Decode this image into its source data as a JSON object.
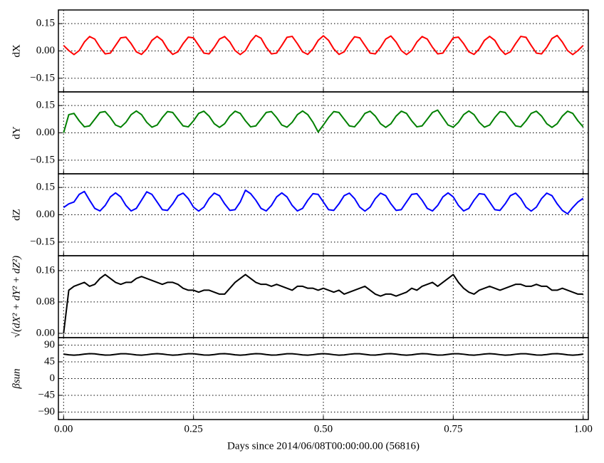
{
  "chart_data": [
    {
      "type": "line",
      "ylabel": "dX",
      "color": "#ff0000",
      "grid": true,
      "xlim": [
        -0.01,
        1.01
      ],
      "xticks": [
        0,
        0.25,
        0.5,
        0.75,
        1
      ],
      "ylim": [
        -0.225,
        0.225
      ],
      "yticks": [
        {
          "value": -0.15,
          "label": "−0.15"
        },
        {
          "value": 0,
          "label": "0.00"
        },
        0.15
      ],
      "x": [
        0,
        0.01,
        0.02,
        0.03,
        0.04,
        0.05,
        0.06,
        0.07,
        0.08,
        0.09,
        0.1,
        0.11,
        0.12,
        0.13,
        0.14,
        0.15,
        0.16,
        0.17,
        0.18,
        0.19,
        0.2,
        0.21,
        0.22,
        0.23,
        0.24,
        0.25,
        0.26,
        0.27,
        0.28,
        0.29,
        0.3,
        0.31,
        0.32,
        0.33,
        0.34,
        0.35,
        0.36,
        0.37,
        0.38,
        0.39,
        0.4,
        0.41,
        0.42,
        0.43,
        0.44,
        0.45,
        0.46,
        0.47,
        0.48,
        0.49,
        0.5,
        0.51,
        0.52,
        0.53,
        0.54,
        0.55,
        0.56,
        0.57,
        0.58,
        0.59,
        0.6,
        0.61,
        0.62,
        0.63,
        0.64,
        0.65,
        0.66,
        0.67,
        0.68,
        0.69,
        0.7,
        0.71,
        0.72,
        0.73,
        0.74,
        0.75,
        0.76,
        0.77,
        0.78,
        0.79,
        0.8,
        0.81,
        0.82,
        0.83,
        0.84,
        0.85,
        0.86,
        0.87,
        0.88,
        0.89,
        0.9,
        0.91,
        0.92,
        0.93,
        0.94,
        0.95,
        0.96,
        0.97,
        0.98,
        0.99,
        1
      ],
      "values": [
        0.03,
        0.002,
        -0.02,
        0.002,
        0.049,
        0.079,
        0.065,
        0.02,
        -0.016,
        -0.012,
        0.03,
        0.072,
        0.076,
        0.04,
        -0.005,
        -0.019,
        0.011,
        0.058,
        0.08,
        0.058,
        0.011,
        -0.019,
        -0.005,
        0.04,
        0.076,
        0.072,
        0.03,
        -0.012,
        -0.016,
        0.02,
        0.065,
        0.079,
        0.049,
        0.002,
        -0.02,
        0.002,
        0.052,
        0.085,
        0.07,
        0.02,
        -0.016,
        -0.012,
        0.03,
        0.075,
        0.08,
        0.04,
        -0.005,
        -0.019,
        0.011,
        0.058,
        0.083,
        0.058,
        0.011,
        -0.019,
        -0.005,
        0.04,
        0.078,
        0.072,
        0.03,
        -0.012,
        -0.016,
        0.02,
        0.065,
        0.082,
        0.049,
        0.002,
        -0.02,
        0.002,
        0.049,
        0.079,
        0.065,
        0.02,
        -0.016,
        -0.012,
        0.03,
        0.072,
        0.076,
        0.04,
        -0.005,
        -0.019,
        0.011,
        0.058,
        0.08,
        0.058,
        0.011,
        -0.019,
        -0.005,
        0.04,
        0.08,
        0.075,
        0.03,
        -0.012,
        -0.016,
        0.02,
        0.068,
        0.085,
        0.049,
        0.002,
        -0.02,
        0.002,
        0.03
      ]
    },
    {
      "type": "line",
      "ylabel": "dY",
      "color": "#008000",
      "grid": true,
      "xlim": [
        -0.01,
        1.01
      ],
      "xticks": [
        0,
        0.25,
        0.5,
        0.75,
        1
      ],
      "ylim": [
        -0.225,
        0.225
      ],
      "yticks": [
        {
          "value": -0.15,
          "label": "−0.15"
        },
        {
          "value": 0,
          "label": "0.00"
        },
        0.15
      ],
      "x": [
        0,
        0.01,
        0.02,
        0.03,
        0.04,
        0.05,
        0.06,
        0.07,
        0.08,
        0.09,
        0.1,
        0.11,
        0.12,
        0.13,
        0.14,
        0.15,
        0.16,
        0.17,
        0.18,
        0.19,
        0.2,
        0.21,
        0.22,
        0.23,
        0.24,
        0.25,
        0.26,
        0.27,
        0.28,
        0.29,
        0.3,
        0.31,
        0.32,
        0.33,
        0.34,
        0.35,
        0.36,
        0.37,
        0.38,
        0.39,
        0.4,
        0.41,
        0.42,
        0.43,
        0.44,
        0.45,
        0.46,
        0.47,
        0.48,
        0.49,
        0.5,
        0.51,
        0.52,
        0.53,
        0.54,
        0.55,
        0.56,
        0.57,
        0.58,
        0.59,
        0.6,
        0.61,
        0.62,
        0.63,
        0.64,
        0.65,
        0.66,
        0.67,
        0.68,
        0.69,
        0.7,
        0.71,
        0.72,
        0.73,
        0.74,
        0.75,
        0.76,
        0.77,
        0.78,
        0.79,
        0.8,
        0.81,
        0.82,
        0.83,
        0.84,
        0.85,
        0.86,
        0.87,
        0.88,
        0.89,
        0.9,
        0.91,
        0.92,
        0.93,
        0.94,
        0.95,
        0.96,
        0.97,
        0.98,
        0.99,
        1
      ],
      "values": [
        0.0,
        0.1,
        0.107,
        0.066,
        0.033,
        0.038,
        0.075,
        0.112,
        0.117,
        0.084,
        0.043,
        0.031,
        0.058,
        0.1,
        0.12,
        0.1,
        0.058,
        0.031,
        0.043,
        0.084,
        0.117,
        0.112,
        0.075,
        0.038,
        0.033,
        0.066,
        0.107,
        0.119,
        0.092,
        0.05,
        0.03,
        0.05,
        0.092,
        0.119,
        0.107,
        0.066,
        0.033,
        0.038,
        0.075,
        0.112,
        0.117,
        0.084,
        0.043,
        0.031,
        0.058,
        0.1,
        0.12,
        0.1,
        0.058,
        0.005,
        0.043,
        0.084,
        0.117,
        0.112,
        0.075,
        0.038,
        0.033,
        0.066,
        0.107,
        0.119,
        0.092,
        0.05,
        0.03,
        0.05,
        0.092,
        0.119,
        0.107,
        0.066,
        0.033,
        0.038,
        0.075,
        0.112,
        0.125,
        0.084,
        0.043,
        0.031,
        0.058,
        0.1,
        0.12,
        0.1,
        0.058,
        0.031,
        0.043,
        0.084,
        0.117,
        0.112,
        0.075,
        0.038,
        0.033,
        0.066,
        0.107,
        0.119,
        0.092,
        0.05,
        0.03,
        0.05,
        0.092,
        0.119,
        0.107,
        0.066,
        0.033
      ]
    },
    {
      "type": "line",
      "ylabel": "dZ",
      "color": "#0000ff",
      "grid": true,
      "xlim": [
        -0.01,
        1.01
      ],
      "xticks": [
        0,
        0.25,
        0.5,
        0.75,
        1
      ],
      "ylim": [
        -0.225,
        0.225
      ],
      "yticks": [
        {
          "value": -0.15,
          "label": "−0.15"
        },
        {
          "value": 0,
          "label": "0.00"
        },
        0.15
      ],
      "x": [
        0,
        0.01,
        0.02,
        0.03,
        0.04,
        0.05,
        0.06,
        0.07,
        0.08,
        0.09,
        0.1,
        0.11,
        0.12,
        0.13,
        0.14,
        0.15,
        0.16,
        0.17,
        0.18,
        0.19,
        0.2,
        0.21,
        0.22,
        0.23,
        0.24,
        0.25,
        0.26,
        0.27,
        0.28,
        0.29,
        0.3,
        0.31,
        0.32,
        0.33,
        0.34,
        0.35,
        0.36,
        0.37,
        0.38,
        0.39,
        0.4,
        0.41,
        0.42,
        0.43,
        0.44,
        0.45,
        0.46,
        0.47,
        0.48,
        0.49,
        0.5,
        0.51,
        0.52,
        0.53,
        0.54,
        0.55,
        0.56,
        0.57,
        0.58,
        0.59,
        0.6,
        0.61,
        0.62,
        0.63,
        0.64,
        0.65,
        0.66,
        0.67,
        0.68,
        0.69,
        0.7,
        0.71,
        0.72,
        0.73,
        0.74,
        0.75,
        0.76,
        0.77,
        0.78,
        0.79,
        0.8,
        0.81,
        0.82,
        0.83,
        0.84,
        0.85,
        0.86,
        0.87,
        0.88,
        0.89,
        0.9,
        0.91,
        0.92,
        0.93,
        0.94,
        0.95,
        0.96,
        0.97,
        0.98,
        0.99,
        1
      ],
      "values": [
        0.04,
        0.06,
        0.07,
        0.112,
        0.128,
        0.08,
        0.035,
        0.021,
        0.051,
        0.098,
        0.12,
        0.098,
        0.051,
        0.021,
        0.035,
        0.08,
        0.126,
        0.112,
        0.07,
        0.028,
        0.024,
        0.06,
        0.105,
        0.119,
        0.089,
        0.042,
        0.02,
        0.042,
        0.089,
        0.119,
        0.105,
        0.06,
        0.024,
        0.028,
        0.07,
        0.135,
        0.116,
        0.08,
        0.035,
        0.021,
        0.051,
        0.098,
        0.12,
        0.098,
        0.051,
        0.021,
        0.035,
        0.08,
        0.116,
        0.112,
        0.07,
        0.028,
        0.024,
        0.06,
        0.105,
        0.119,
        0.089,
        0.042,
        0.02,
        0.042,
        0.089,
        0.119,
        0.105,
        0.06,
        0.024,
        0.028,
        0.07,
        0.112,
        0.116,
        0.08,
        0.035,
        0.021,
        0.051,
        0.098,
        0.12,
        0.098,
        0.051,
        0.021,
        0.035,
        0.08,
        0.116,
        0.112,
        0.07,
        0.028,
        0.024,
        0.06,
        0.105,
        0.119,
        0.089,
        0.042,
        0.02,
        0.042,
        0.089,
        0.119,
        0.105,
        0.06,
        0.024,
        0.005,
        0.04,
        0.07,
        0.09
      ]
    },
    {
      "type": "line",
      "ylabel": "√(dX² + dY² + dZ²)",
      "color": "#000000",
      "grid": true,
      "xlim": [
        -0.01,
        1.01
      ],
      "xticks": [
        0,
        0.25,
        0.5,
        0.75,
        1
      ],
      "ylim": [
        -0.011,
        0.198
      ],
      "yticks": [
        {
          "value": 0,
          "label": "0.00"
        },
        0.08,
        0.16
      ],
      "x": [
        0,
        0.01,
        0.02,
        0.03,
        0.04,
        0.05,
        0.06,
        0.07,
        0.08,
        0.09,
        0.1,
        0.11,
        0.12,
        0.13,
        0.14,
        0.15,
        0.16,
        0.17,
        0.18,
        0.19,
        0.2,
        0.21,
        0.22,
        0.23,
        0.24,
        0.25,
        0.26,
        0.27,
        0.28,
        0.29,
        0.3,
        0.31,
        0.32,
        0.33,
        0.34,
        0.35,
        0.36,
        0.37,
        0.38,
        0.39,
        0.4,
        0.41,
        0.42,
        0.43,
        0.44,
        0.45,
        0.46,
        0.47,
        0.48,
        0.49,
        0.5,
        0.51,
        0.52,
        0.53,
        0.54,
        0.55,
        0.56,
        0.57,
        0.58,
        0.59,
        0.6,
        0.61,
        0.62,
        0.63,
        0.64,
        0.65,
        0.66,
        0.67,
        0.68,
        0.69,
        0.7,
        0.71,
        0.72,
        0.73,
        0.74,
        0.75,
        0.76,
        0.77,
        0.78,
        0.79,
        0.8,
        0.81,
        0.82,
        0.83,
        0.84,
        0.85,
        0.86,
        0.87,
        0.88,
        0.89,
        0.9,
        0.91,
        0.92,
        0.93,
        0.94,
        0.95,
        0.96,
        0.97,
        0.98,
        0.99,
        1
      ],
      "values": [
        0.0,
        0.11,
        0.12,
        0.125,
        0.13,
        0.12,
        0.125,
        0.14,
        0.15,
        0.14,
        0.13,
        0.125,
        0.13,
        0.13,
        0.14,
        0.145,
        0.14,
        0.135,
        0.13,
        0.125,
        0.13,
        0.13,
        0.125,
        0.115,
        0.11,
        0.11,
        0.105,
        0.11,
        0.11,
        0.105,
        0.1,
        0.1,
        0.115,
        0.13,
        0.14,
        0.15,
        0.14,
        0.13,
        0.125,
        0.125,
        0.12,
        0.125,
        0.12,
        0.115,
        0.11,
        0.12,
        0.12,
        0.115,
        0.115,
        0.11,
        0.115,
        0.11,
        0.105,
        0.11,
        0.1,
        0.105,
        0.11,
        0.115,
        0.12,
        0.11,
        0.1,
        0.095,
        0.1,
        0.1,
        0.095,
        0.1,
        0.105,
        0.115,
        0.11,
        0.12,
        0.125,
        0.13,
        0.12,
        0.13,
        0.14,
        0.15,
        0.13,
        0.115,
        0.105,
        0.1,
        0.11,
        0.115,
        0.12,
        0.115,
        0.11,
        0.115,
        0.12,
        0.125,
        0.125,
        0.12,
        0.12,
        0.125,
        0.12,
        0.12,
        0.11,
        0.11,
        0.115,
        0.11,
        0.105,
        0.1,
        0.1
      ]
    },
    {
      "type": "line",
      "ylabel": "βsun",
      "color": "#000000",
      "grid": true,
      "xlabel": "Days since 2014/06/08T00:00:00.00 (56816)",
      "xlim": [
        -0.01,
        1.01
      ],
      "xticks": [
        {
          "value": 0,
          "label": "0.00"
        },
        0.25,
        {
          "value": 0.5,
          "label": "0.50"
        },
        0.75,
        {
          "value": 1,
          "label": "1.00"
        }
      ],
      "ylim": [
        -110,
        110
      ],
      "yticks": [
        {
          "value": -90,
          "label": "−90"
        },
        {
          "value": -45,
          "label": "−45"
        },
        0,
        45,
        90
      ],
      "x": [
        0,
        0.01,
        0.02,
        0.03,
        0.04,
        0.05,
        0.06,
        0.07,
        0.08,
        0.09,
        0.1,
        0.11,
        0.12,
        0.13,
        0.14,
        0.15,
        0.16,
        0.17,
        0.18,
        0.19,
        0.2,
        0.21,
        0.22,
        0.23,
        0.24,
        0.25,
        0.26,
        0.27,
        0.28,
        0.29,
        0.3,
        0.31,
        0.32,
        0.33,
        0.34,
        0.35,
        0.36,
        0.37,
        0.38,
        0.39,
        0.4,
        0.41,
        0.42,
        0.43,
        0.44,
        0.45,
        0.46,
        0.47,
        0.48,
        0.49,
        0.5,
        0.51,
        0.52,
        0.53,
        0.54,
        0.55,
        0.56,
        0.57,
        0.58,
        0.59,
        0.6,
        0.61,
        0.62,
        0.63,
        0.64,
        0.65,
        0.66,
        0.67,
        0.68,
        0.69,
        0.7,
        0.71,
        0.72,
        0.73,
        0.74,
        0.75,
        0.76,
        0.77,
        0.78,
        0.79,
        0.8,
        0.81,
        0.82,
        0.83,
        0.84,
        0.85,
        0.86,
        0.87,
        0.88,
        0.89,
        0.9,
        0.91,
        0.92,
        0.93,
        0.94,
        0.95,
        0.96,
        0.97,
        0.98,
        0.99,
        1
      ],
      "values": [
        65.8,
        63.9,
        63,
        63.9,
        65.8,
        67,
        66.4,
        64.6,
        63.2,
        63.3,
        65,
        66.7,
        66.8,
        65.4,
        63.6,
        63,
        64.2,
        66.1,
        67,
        66.1,
        64.2,
        63,
        63.6,
        65.4,
        66.8,
        66.7,
        65,
        63.3,
        63.2,
        64.6,
        66.4,
        67,
        65.8,
        63.9,
        63,
        63.9,
        65.8,
        67,
        66.4,
        64.6,
        63.2,
        63.3,
        65,
        66.7,
        66.8,
        65.4,
        63.6,
        63,
        64.2,
        66.1,
        67,
        66.1,
        64.2,
        63,
        63.6,
        65.4,
        66.8,
        66.7,
        65,
        63.3,
        63.2,
        64.6,
        66.4,
        67,
        65.8,
        63.9,
        63,
        63.9,
        65.8,
        67,
        66.4,
        64.6,
        63.2,
        63.3,
        65,
        66.7,
        66.8,
        65.4,
        63.6,
        63,
        64.2,
        66.1,
        67,
        66.1,
        64.2,
        63,
        63.6,
        65.4,
        66.8,
        66.7,
        65,
        63.3,
        63.2,
        64.6,
        66.4,
        67,
        65.8,
        63.9,
        63,
        63.9,
        65.8
      ]
    }
  ]
}
